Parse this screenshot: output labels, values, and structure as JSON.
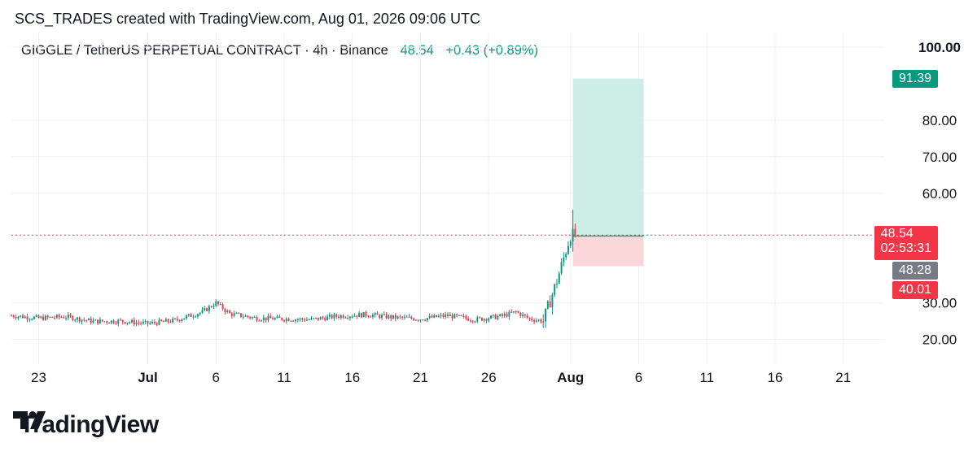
{
  "header": {
    "text": "SCS_TRADES created with TradingView.com, Aug 01, 2026 09:06 UTC"
  },
  "legend": {
    "symbol": "GIGGLE / TetherUS PERPETUAL CONTRACT · 4h · Binance",
    "last": "48.54",
    "change": "+0.43 (+0.89%)"
  },
  "brand": {
    "name": "TradingView",
    "icon": "tradingview-logo-icon"
  },
  "colors": {
    "up": "#089981",
    "down": "#f23645",
    "profit_zone": "#cdeee6",
    "loss_zone": "#fbd7da",
    "grid": "#eef0f3",
    "text": "#131722"
  },
  "tags": {
    "target": "91.39",
    "last": "48.54",
    "countdown": "02:53:31",
    "entry": "48.28",
    "stop": "40.01"
  },
  "chart_data": {
    "type": "candlestick",
    "timeframe": "4h",
    "y_axis": {
      "min": 15,
      "max": 104,
      "ticks": [
        "100.00",
        "80.00",
        "70.00",
        "60.00",
        "30.00",
        "20.00"
      ],
      "position": "right"
    },
    "x_axis": {
      "start": "Jun 21",
      "end": "Aug 24",
      "tick_labels": [
        "23",
        "Jul",
        "6",
        "11",
        "16",
        "21",
        "26",
        "Aug",
        "6",
        "11",
        "16",
        "21"
      ]
    },
    "grid": true,
    "last_price_line": 48.54,
    "position_tool": {
      "direction": "long",
      "entry": 48.28,
      "target": 91.39,
      "stop": 40.01,
      "start": "Aug 01",
      "end": "Aug 06"
    },
    "series": [
      {
        "kind": "close_path",
        "points": [
          [
            "Jun 21",
            26.5
          ],
          [
            "Jun 23",
            25.8
          ],
          [
            "Jun 25",
            26.2
          ],
          [
            "Jun 27",
            24.9
          ],
          [
            "Jun 29",
            25.0
          ],
          [
            "Jul 01",
            24.3
          ],
          [
            "Jul 03",
            25.2
          ],
          [
            "Jul 05",
            27.5
          ],
          [
            "Jul 06",
            30.0
          ],
          [
            "Jul 07",
            27.0
          ],
          [
            "Jul 09",
            25.8
          ],
          [
            "Jul 11",
            25.6
          ],
          [
            "Jul 13",
            25.4
          ],
          [
            "Jul 15",
            26.4
          ],
          [
            "Jul 17",
            26.8
          ],
          [
            "Jul 19",
            26.0
          ],
          [
            "Jul 21",
            25.6
          ],
          [
            "Jul 23",
            26.5
          ],
          [
            "Jul 25",
            25.4
          ],
          [
            "Jul 27",
            26.4
          ],
          [
            "Jul 28",
            27.5
          ],
          [
            "Jul 29",
            25.6
          ],
          [
            "Jul 30",
            25.0
          ],
          [
            "Jul 31",
            36.0
          ],
          [
            "Aug 01",
            48.54
          ]
        ]
      }
    ]
  }
}
